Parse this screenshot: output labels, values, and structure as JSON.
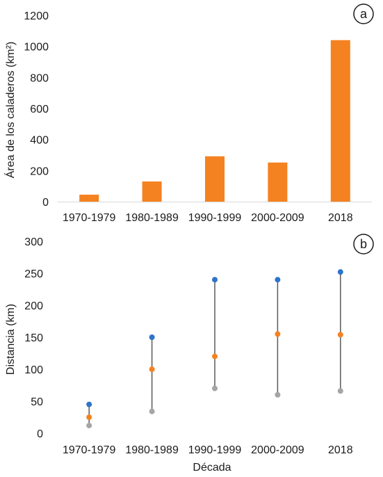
{
  "chart_data": [
    {
      "type": "bar",
      "panel_label": "a",
      "categories": [
        "1970-1979",
        "1980-1989",
        "1990-1999",
        "2000-2009",
        "2018"
      ],
      "values": [
        45,
        130,
        292,
        252,
        1040
      ],
      "xlabel": "",
      "ylabel": "Área de los caladeros (km²)",
      "ylim": [
        0,
        1200
      ],
      "yticks": [
        0,
        200,
        400,
        600,
        800,
        1000,
        1200
      ],
      "bar_color": "#F58220",
      "grid": false
    },
    {
      "type": "scatter",
      "panel_label": "b",
      "categories": [
        "1970-1979",
        "1980-1989",
        "1990-1999",
        "2000-2009",
        "2018"
      ],
      "series": [
        {
          "values": [
            45,
            150,
            240,
            240,
            252
          ],
          "color": "#2E74C9"
        },
        {
          "values": [
            25,
            100,
            120,
            155,
            154
          ],
          "color": "#F58220"
        },
        {
          "values": [
            12,
            34,
            70,
            60,
            66
          ],
          "color": "#A5A5A5"
        }
      ],
      "range_line_color": "#595959",
      "xlabel": "Década",
      "ylabel": "Distancia (km)",
      "ylim": [
        0,
        300
      ],
      "yticks": [
        0,
        50,
        100,
        150,
        200,
        250,
        300
      ],
      "grid": false
    }
  ]
}
